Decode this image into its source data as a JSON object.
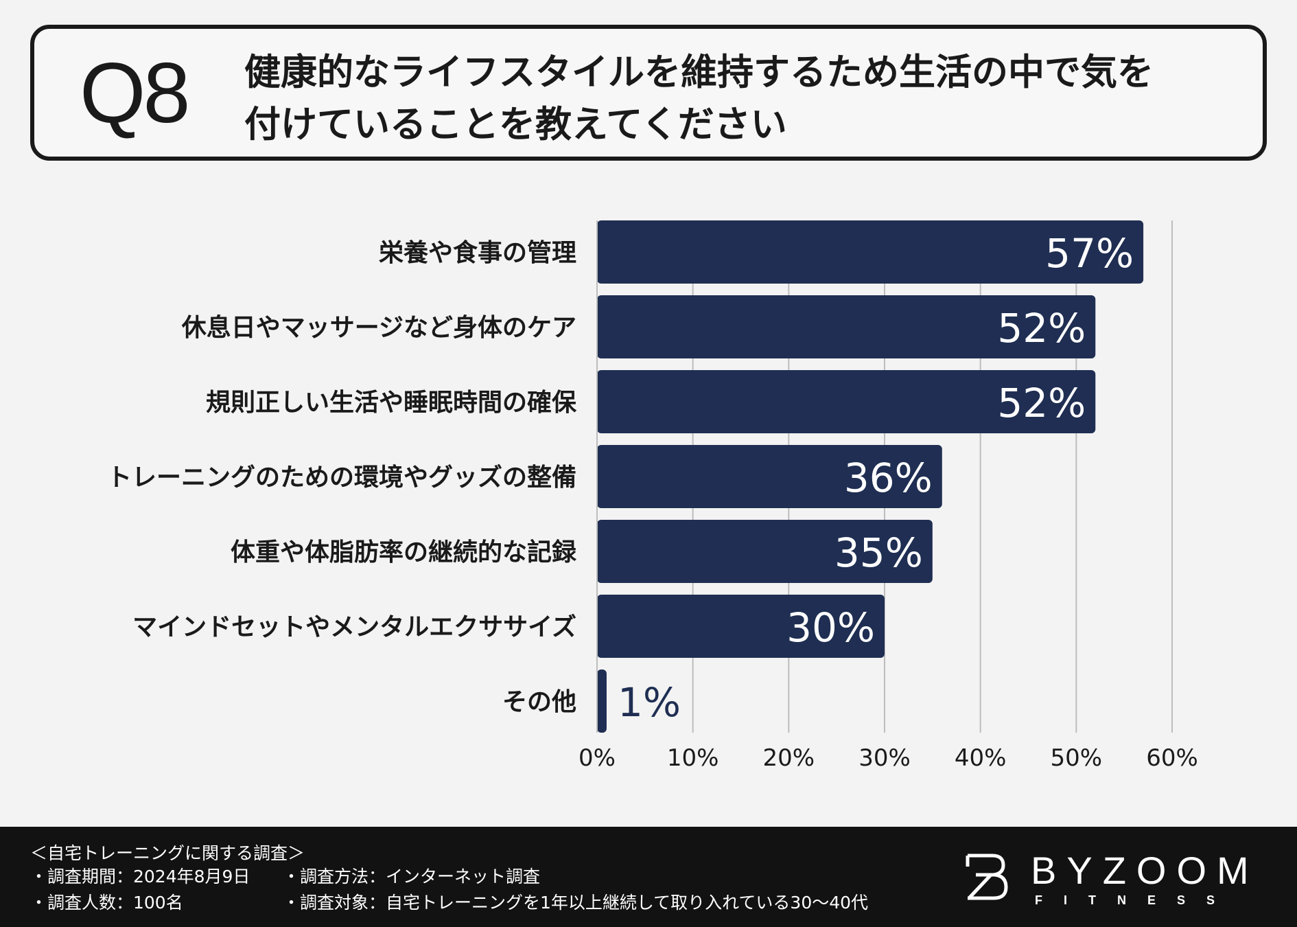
{
  "header": {
    "question_number": "Q8",
    "question_line1": "健康的なライフスタイルを維持するため生活の中で気を",
    "question_line2": "付けていることを教えてください"
  },
  "chart_data": {
    "type": "bar",
    "orientation": "horizontal",
    "title": "",
    "xlabel": "",
    "ylabel": "",
    "categories": [
      "栄養や食事の管理",
      "休息日やマッサージなど身体のケア",
      "規則正しい生活や睡眠時間の確保",
      "トレーニングのための環境やグッズの整備",
      "体重や体脂肪率の継続的な記録",
      "マインドセットやメンタルエクササイズ",
      "その他"
    ],
    "values": [
      57,
      52,
      52,
      36,
      35,
      30,
      1
    ],
    "data_labels": [
      "57%",
      "52%",
      "52%",
      "36%",
      "35%",
      "30%",
      "1%"
    ],
    "xlim": [
      0,
      60
    ],
    "ticks": [
      0,
      10,
      20,
      30,
      40,
      50,
      60
    ],
    "tick_labels": [
      "0%",
      "10%",
      "20%",
      "30%",
      "40%",
      "50%",
      "60%"
    ],
    "grid": true,
    "colors": {
      "bar": "#1f2e52",
      "grid": "#bdbdbd",
      "label_inside": "#ffffff",
      "label_outside": "#1f2e52"
    }
  },
  "footer": {
    "survey_title": "＜自宅トレーニングに関する調査＞",
    "period": "・調査期間：2024年8月9日",
    "respondents": "・調査人数：100名",
    "method": "・調査方法：インターネット調査",
    "target": "・調査対象：自宅トレーニングを1年以上継続して取り入れている30〜40代",
    "logo_main": "BYZOOM",
    "logo_sub": "FITNESS"
  }
}
